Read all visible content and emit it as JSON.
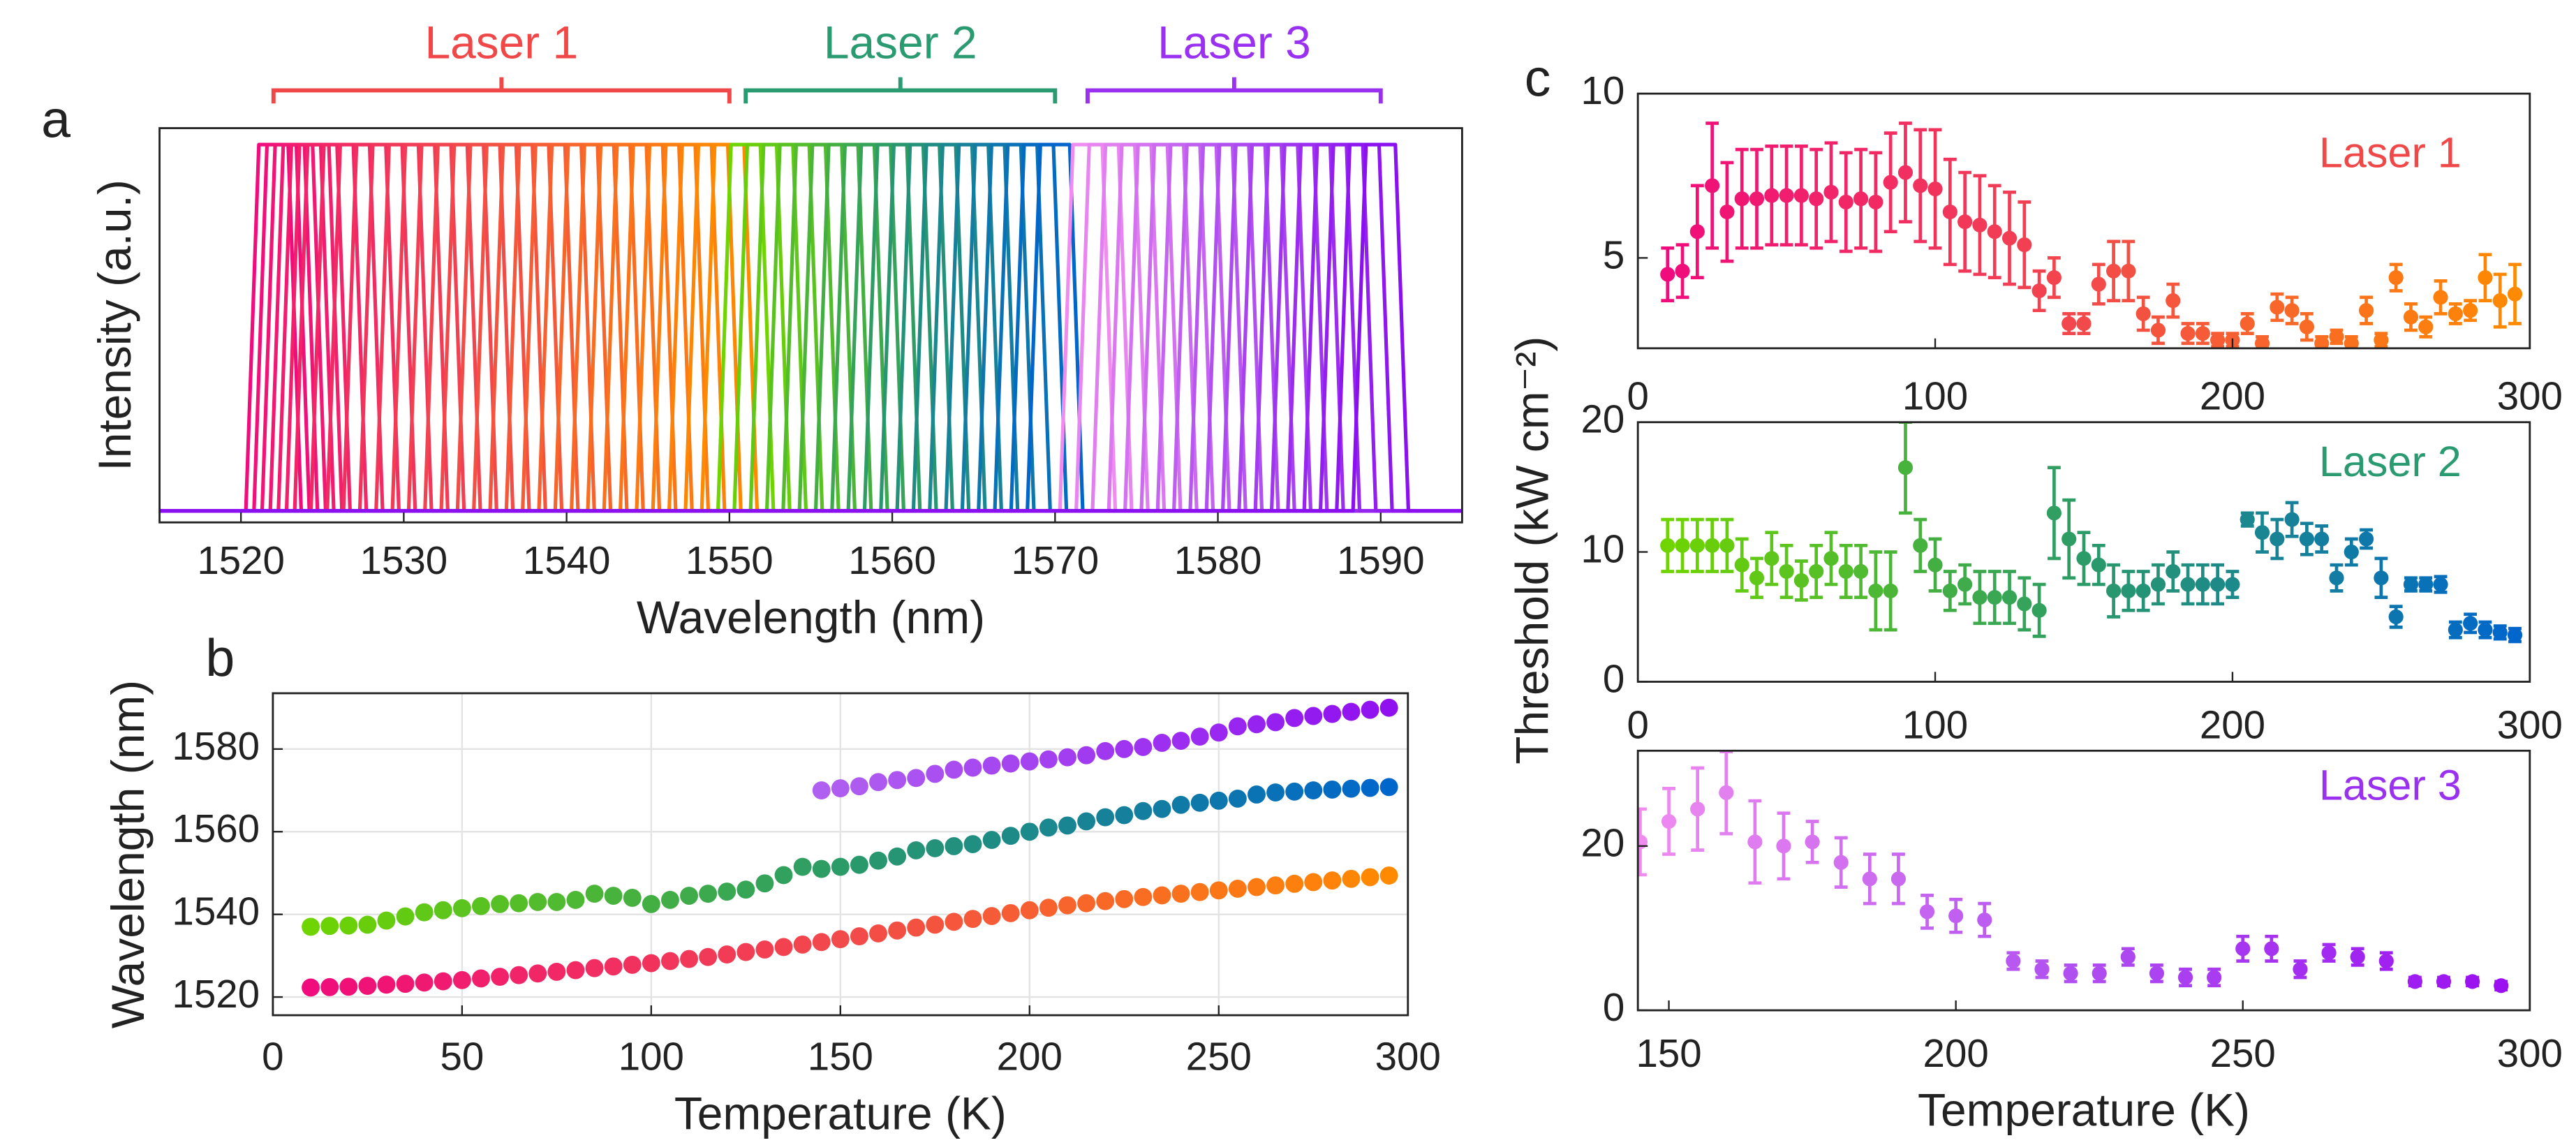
{
  "chart_data": [
    {
      "type": "spectra",
      "panel_label": "a",
      "xlabel": "Wavelength (nm)",
      "ylabel": "Intensity (a.u.)",
      "xlim": [
        1515,
        1595
      ],
      "xticks": [
        1520,
        1530,
        1540,
        1550,
        1560,
        1570,
        1580,
        1590
      ],
      "series": [
        {
          "name": "Laser 1",
          "color": "#f04848",
          "colors": [
            "#f00c7c",
            "#f24a4a",
            "#ff8a00"
          ],
          "peaks": [
            1522,
            1522.5,
            1523,
            1523.5,
            1524,
            1524.5,
            1525,
            1526,
            1527,
            1528,
            1529,
            1530,
            1531,
            1532,
            1533,
            1534,
            1535,
            1536,
            1537,
            1538,
            1539,
            1540,
            1541,
            1542,
            1543,
            1544,
            1545,
            1546,
            1547,
            1548,
            1549,
            1550
          ]
        },
        {
          "name": "Laser 2",
          "color": "#2a9a70",
          "colors": [
            "#6fd400",
            "#2a9a6a",
            "#0066cc"
          ],
          "peaks": [
            1551,
            1552,
            1553,
            1554,
            1555,
            1556,
            1557,
            1558,
            1559,
            1560,
            1561,
            1562,
            1563,
            1564,
            1565,
            1566,
            1567,
            1568,
            1569,
            1570
          ]
        },
        {
          "name": "Laser 3",
          "color": "#9a30f0",
          "colors": [
            "#f08cf0",
            "#b050f0",
            "#8a10f0"
          ],
          "peaks": [
            1572,
            1573,
            1574,
            1575,
            1576,
            1577,
            1578,
            1579,
            1580,
            1581,
            1582,
            1583,
            1584,
            1585,
            1586,
            1587,
            1588,
            1589,
            1590
          ]
        }
      ]
    },
    {
      "type": "scatter",
      "panel_label": "b",
      "xlabel": "Temperature (K)",
      "ylabel": "Wavelength (nm)",
      "grid": true,
      "xlim": [
        0,
        300
      ],
      "xticks": [
        0,
        50,
        100,
        150,
        200,
        250,
        300
      ],
      "ylim": [
        1515.6,
        1593.5
      ],
      "yticks": [
        1520,
        1540,
        1560,
        1580
      ],
      "series": [
        {
          "colors": [
            "#f00c7c",
            "#f24a4a",
            "#ff8a00"
          ],
          "x": [
            10,
            15,
            20,
            25,
            30,
            35,
            40,
            45,
            50,
            55,
            60,
            65,
            70,
            75,
            80,
            85,
            90,
            95,
            100,
            105,
            110,
            115,
            120,
            125,
            130,
            135,
            140,
            145,
            150,
            155,
            160,
            165,
            170,
            175,
            180,
            185,
            190,
            195,
            200,
            205,
            210,
            215,
            220,
            225,
            230,
            235,
            240,
            245,
            250,
            255,
            260,
            265,
            270,
            275,
            280,
            285,
            290,
            295
          ],
          "values": [
            1522.3,
            1522.4,
            1522.5,
            1522.7,
            1523,
            1523.2,
            1523.5,
            1523.8,
            1524.1,
            1524.5,
            1524.9,
            1525.3,
            1525.7,
            1526.1,
            1526.5,
            1527,
            1527.4,
            1527.8,
            1528.2,
            1528.7,
            1529.2,
            1529.7,
            1530.3,
            1530.9,
            1531.5,
            1532.1,
            1532.7,
            1533.3,
            1534,
            1534.7,
            1535.4,
            1536.1,
            1536.8,
            1537.5,
            1538.2,
            1538.9,
            1539.6,
            1540.3,
            1541,
            1541.6,
            1542.2,
            1542.7,
            1543.2,
            1543.7,
            1544.2,
            1544.6,
            1545,
            1545.4,
            1545.8,
            1546.2,
            1546.6,
            1547,
            1547.4,
            1547.8,
            1548.2,
            1548.6,
            1549,
            1549.4
          ]
        },
        {
          "colors": [
            "#6fd400",
            "#2a9a6a",
            "#0066cc"
          ],
          "x": [
            10,
            15,
            20,
            25,
            30,
            35,
            40,
            45,
            50,
            55,
            60,
            65,
            70,
            75,
            80,
            85,
            90,
            95,
            100,
            105,
            110,
            115,
            120,
            125,
            130,
            135,
            140,
            145,
            150,
            155,
            160,
            165,
            170,
            175,
            180,
            185,
            190,
            195,
            200,
            205,
            210,
            215,
            220,
            225,
            230,
            235,
            240,
            245,
            250,
            255,
            260,
            265,
            270,
            275,
            280,
            285,
            290,
            295
          ],
          "values": [
            1537,
            1537.2,
            1537.3,
            1537.5,
            1538.5,
            1539.5,
            1540.5,
            1541,
            1541.5,
            1542,
            1542.5,
            1542.7,
            1543,
            1543,
            1543.5,
            1545,
            1544.5,
            1544,
            1542.5,
            1543.5,
            1544.5,
            1545,
            1545.5,
            1546,
            1547.5,
            1549.5,
            1551.5,
            1551,
            1551.5,
            1552,
            1553,
            1554,
            1555.5,
            1556,
            1556.5,
            1557,
            1558,
            1559,
            1560,
            1561,
            1561.5,
            1562.5,
            1563.5,
            1564,
            1565,
            1565.5,
            1566.5,
            1567,
            1567.5,
            1568,
            1569,
            1569.5,
            1569.7,
            1570,
            1570.2,
            1570.4,
            1570.6,
            1570.8
          ]
        },
        {
          "colors": [
            "#b060f0",
            "#9010f0"
          ],
          "x": [
            145,
            150,
            155,
            160,
            165,
            170,
            175,
            180,
            185,
            190,
            195,
            200,
            205,
            210,
            215,
            220,
            225,
            230,
            235,
            240,
            245,
            250,
            255,
            260,
            265,
            270,
            275,
            280,
            285,
            290,
            295
          ],
          "values": [
            1570,
            1570.5,
            1571,
            1572,
            1572.5,
            1573,
            1574,
            1575,
            1575.5,
            1576,
            1576.5,
            1577,
            1577.5,
            1578,
            1578.5,
            1579.5,
            1580,
            1580.5,
            1581.5,
            1582,
            1583,
            1584,
            1585.5,
            1586,
            1586.5,
            1587.5,
            1588,
            1588.5,
            1589,
            1589.5,
            1590
          ]
        }
      ]
    },
    {
      "type": "errorbar",
      "panel_label": "c",
      "xlim": [
        0,
        300
      ],
      "xticks": [
        0,
        100,
        200,
        300
      ],
      "ylim": [
        2.25,
        10
      ],
      "yticks": [
        5,
        10
      ],
      "series": [
        {
          "name": "Laser 1",
          "color": "#f04848",
          "colors": [
            "#f00c7c",
            "#f24a4a",
            "#ff8a00"
          ],
          "x": [
            10,
            15,
            20,
            25,
            30,
            35,
            40,
            45,
            50,
            55,
            60,
            65,
            70,
            75,
            80,
            85,
            90,
            95,
            100,
            105,
            110,
            115,
            120,
            125,
            130,
            135,
            140,
            145,
            150,
            155,
            160,
            165,
            170,
            175,
            180,
            185,
            190,
            195,
            200,
            205,
            210,
            215,
            220,
            225,
            230,
            235,
            240,
            245,
            250,
            255,
            260,
            265,
            270,
            275,
            280,
            285,
            290,
            295
          ],
          "values": [
            4.5,
            4.6,
            5.8,
            7.2,
            6.4,
            6.8,
            6.8,
            6.9,
            6.9,
            6.9,
            6.8,
            7.0,
            6.7,
            6.8,
            6.7,
            7.3,
            7.6,
            7.2,
            7.1,
            6.4,
            6.1,
            6.0,
            5.8,
            5.6,
            5.4,
            4.0,
            4.4,
            3.0,
            3.0,
            4.2,
            4.6,
            4.6,
            3.3,
            2.8,
            3.7,
            2.7,
            2.7,
            2.5,
            2.5,
            3.0,
            2.4,
            3.5,
            3.4,
            2.9,
            2.4,
            2.6,
            2.4,
            3.4,
            2.5,
            4.4,
            3.2,
            2.9,
            3.8,
            3.3,
            3.4,
            4.4,
            3.7,
            3.9
          ],
          "errors": [
            0.8,
            0.8,
            1.4,
            1.9,
            1.5,
            1.5,
            1.5,
            1.5,
            1.5,
            1.5,
            1.5,
            1.5,
            1.5,
            1.5,
            1.5,
            1.5,
            1.5,
            1.7,
            1.8,
            1.6,
            1.5,
            1.5,
            1.4,
            1.4,
            1.3,
            0.6,
            0.6,
            0.3,
            0.3,
            0.6,
            0.9,
            0.9,
            0.5,
            0.4,
            0.5,
            0.3,
            0.3,
            0.2,
            0.2,
            0.3,
            0.2,
            0.4,
            0.4,
            0.4,
            0.2,
            0.2,
            0.2,
            0.4,
            0.2,
            0.4,
            0.4,
            0.3,
            0.5,
            0.3,
            0.3,
            0.7,
            0.8,
            0.9
          ]
        }
      ]
    },
    {
      "type": "errorbar",
      "ylabel": "Threshold (kW cm⁻²)",
      "xlim": [
        0,
        300
      ],
      "xticks": [
        0,
        100,
        200,
        300
      ],
      "ylim": [
        0,
        20
      ],
      "yticks": [
        0,
        10,
        20
      ],
      "series": [
        {
          "name": "Laser 2",
          "color": "#2a9a70",
          "colors": [
            "#6fd400",
            "#2a9a6a",
            "#0066cc"
          ],
          "x": [
            10,
            15,
            20,
            25,
            30,
            35,
            40,
            45,
            50,
            55,
            60,
            65,
            70,
            75,
            80,
            85,
            90,
            95,
            100,
            105,
            110,
            115,
            120,
            125,
            130,
            135,
            140,
            145,
            150,
            155,
            160,
            165,
            170,
            175,
            180,
            185,
            190,
            195,
            200,
            205,
            210,
            215,
            220,
            225,
            230,
            235,
            240,
            245,
            250,
            255,
            260,
            265,
            270,
            275,
            280,
            285,
            290,
            295
          ],
          "values": [
            10.5,
            10.5,
            10.5,
            10.5,
            10.5,
            9,
            8,
            9.5,
            8.5,
            7.8,
            8.5,
            9.5,
            8.5,
            8.5,
            7,
            7,
            16.5,
            10.5,
            9,
            7,
            7.5,
            6.5,
            6.5,
            6.5,
            6,
            5.5,
            13,
            11,
            9.5,
            9,
            7,
            7,
            7,
            7.5,
            8.5,
            7.5,
            7.5,
            7.5,
            7.5,
            12.5,
            11.5,
            11,
            12.5,
            11,
            11,
            8,
            10,
            11,
            8,
            5,
            7.5,
            7.5,
            7.5,
            4,
            4.5,
            4,
            3.8,
            3.6
          ],
          "errors": [
            2,
            2,
            2,
            2,
            2,
            2,
            1.5,
            2,
            2,
            1.5,
            2,
            2,
            2,
            2,
            3,
            3,
            3.5,
            2,
            2,
            1.5,
            1.5,
            2,
            2,
            2,
            2,
            2,
            3.5,
            3,
            2,
            1.5,
            2,
            1.5,
            1.5,
            1.5,
            1.5,
            1.5,
            1.5,
            1.5,
            1,
            0.5,
            1.5,
            1.5,
            1.3,
            1.2,
            1,
            1,
            1,
            0.7,
            1.5,
            0.8,
            0.5,
            0.5,
            0.6,
            0.6,
            0.7,
            0.6,
            0.5,
            0.5
          ]
        }
      ]
    },
    {
      "type": "errorbar",
      "xlabel": "Temperature (K)",
      "xlim": [
        144.6,
        300
      ],
      "xticks": [
        150,
        200,
        250,
        300
      ],
      "ylim": [
        0,
        31.6
      ],
      "yticks": [
        0,
        20
      ],
      "series": [
        {
          "name": "Laser 3",
          "color": "#9a30f0",
          "colors": [
            "#f08cf0",
            "#b050f0",
            "#9a10f0"
          ],
          "x": [
            145,
            150,
            155,
            160,
            165,
            170,
            175,
            180,
            185,
            190,
            195,
            200,
            205,
            210,
            215,
            220,
            225,
            230,
            235,
            240,
            245,
            250,
            255,
            260,
            265,
            270,
            275,
            280,
            285,
            290,
            295
          ],
          "values": [
            20.5,
            23,
            24.5,
            26.5,
            20.5,
            20,
            20.5,
            18,
            16,
            16,
            12,
            11.5,
            11,
            6,
            5,
            4.5,
            4.5,
            6.5,
            4.5,
            4,
            4,
            7.5,
            7.5,
            5,
            7,
            6.5,
            6,
            3.5,
            3.5,
            3.5,
            3
          ],
          "errors": [
            4,
            4,
            5,
            5,
            5,
            4,
            2.5,
            3,
            3,
            3,
            2,
            2,
            2,
            1,
            1,
            1,
            1,
            1,
            1,
            1,
            1,
            1.5,
            1.5,
            1,
            1,
            1,
            1,
            0.5,
            0.5,
            0.5,
            0.5
          ]
        }
      ]
    }
  ]
}
